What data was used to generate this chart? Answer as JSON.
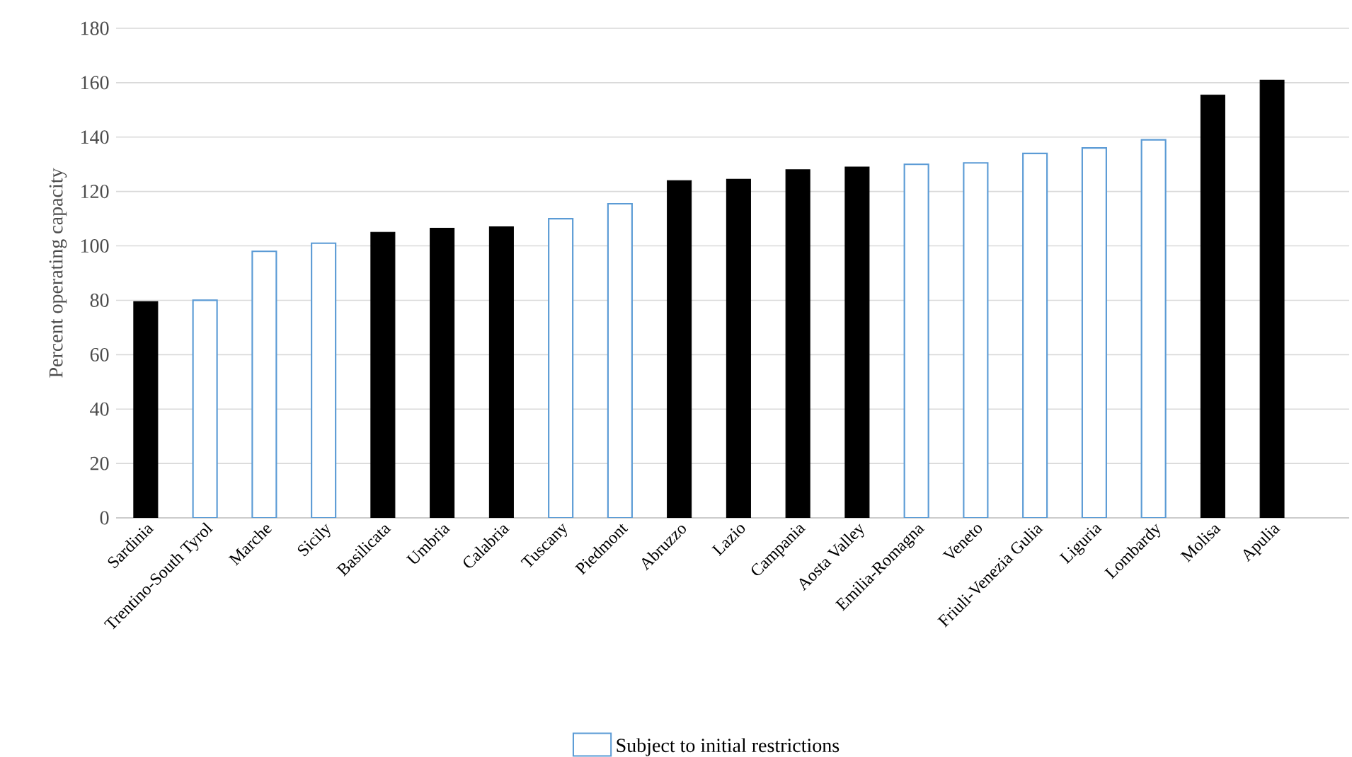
{
  "chart_data": {
    "type": "bar",
    "ylabel": "Percent operating capacity",
    "categories": [
      "Sardinia",
      "Trentino-South Tyrol",
      "Marche",
      "Sicily",
      "Basilicata",
      "Umbria",
      "Calabria",
      "Tuscany",
      "Piedmont",
      "Abruzzo",
      "Lazio",
      "Campania",
      "Aosta Valley",
      "Emilia-Romagna",
      "Veneto",
      "Friuli-Venezia Gulia",
      "Liguria",
      "Lombardy",
      "Molisa",
      "Apulia"
    ],
    "series": [
      {
        "color": "#000000",
        "values": [
          79.5,
          null,
          null,
          null,
          105,
          106.5,
          107,
          null,
          null,
          124,
          124.5,
          128,
          129,
          null,
          null,
          null,
          null,
          null,
          155.5,
          161
        ]
      },
      {
        "name": "Subject to initial restrictions",
        "color": "#5b9bd5",
        "values": [
          null,
          80,
          98,
          101,
          null,
          null,
          null,
          110,
          115.5,
          null,
          null,
          null,
          null,
          130,
          130.5,
          134,
          136,
          139,
          null,
          null
        ]
      }
    ],
    "ylim": [
      0,
      180
    ],
    "yticks": [
      0,
      20,
      40,
      60,
      80,
      100,
      120,
      140,
      160,
      180
    ],
    "grid": "y",
    "legend": "bottom"
  }
}
